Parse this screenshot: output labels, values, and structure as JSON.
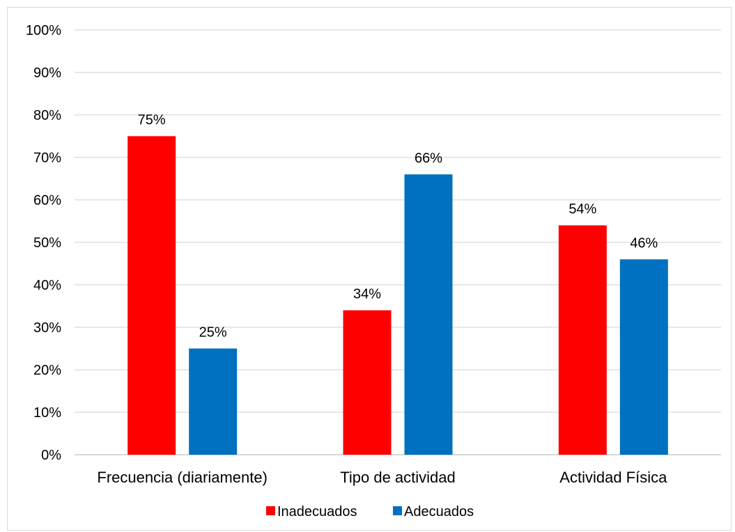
{
  "chart_data": {
    "type": "bar",
    "categories": [
      "Frecuencia (diariamente)",
      "Tipo de actividad",
      "Actividad Física"
    ],
    "series": [
      {
        "name": "Inadecuados",
        "values": [
          75,
          34,
          54
        ],
        "labels": [
          "75%",
          "34%",
          "54%"
        ],
        "color": "#ff0000"
      },
      {
        "name": "Adecuados",
        "values": [
          25,
          66,
          46
        ],
        "labels": [
          "25%",
          "66%",
          "46%"
        ],
        "color": "#0070c0"
      }
    ],
    "ylim": [
      0,
      100
    ],
    "yticks": [
      {
        "value": 0,
        "label": "0%"
      },
      {
        "value": 10,
        "label": "10%"
      },
      {
        "value": 20,
        "label": "20%"
      },
      {
        "value": 30,
        "label": "30%"
      },
      {
        "value": 40,
        "label": "40%"
      },
      {
        "value": 50,
        "label": "50%"
      },
      {
        "value": 60,
        "label": "60%"
      },
      {
        "value": 70,
        "label": "70%"
      },
      {
        "value": 80,
        "label": "80%"
      },
      {
        "value": 90,
        "label": "90%"
      },
      {
        "value": 100,
        "label": "100%"
      }
    ],
    "grid": true,
    "legend_position": "bottom",
    "title": "",
    "xlabel": "",
    "ylabel": ""
  }
}
